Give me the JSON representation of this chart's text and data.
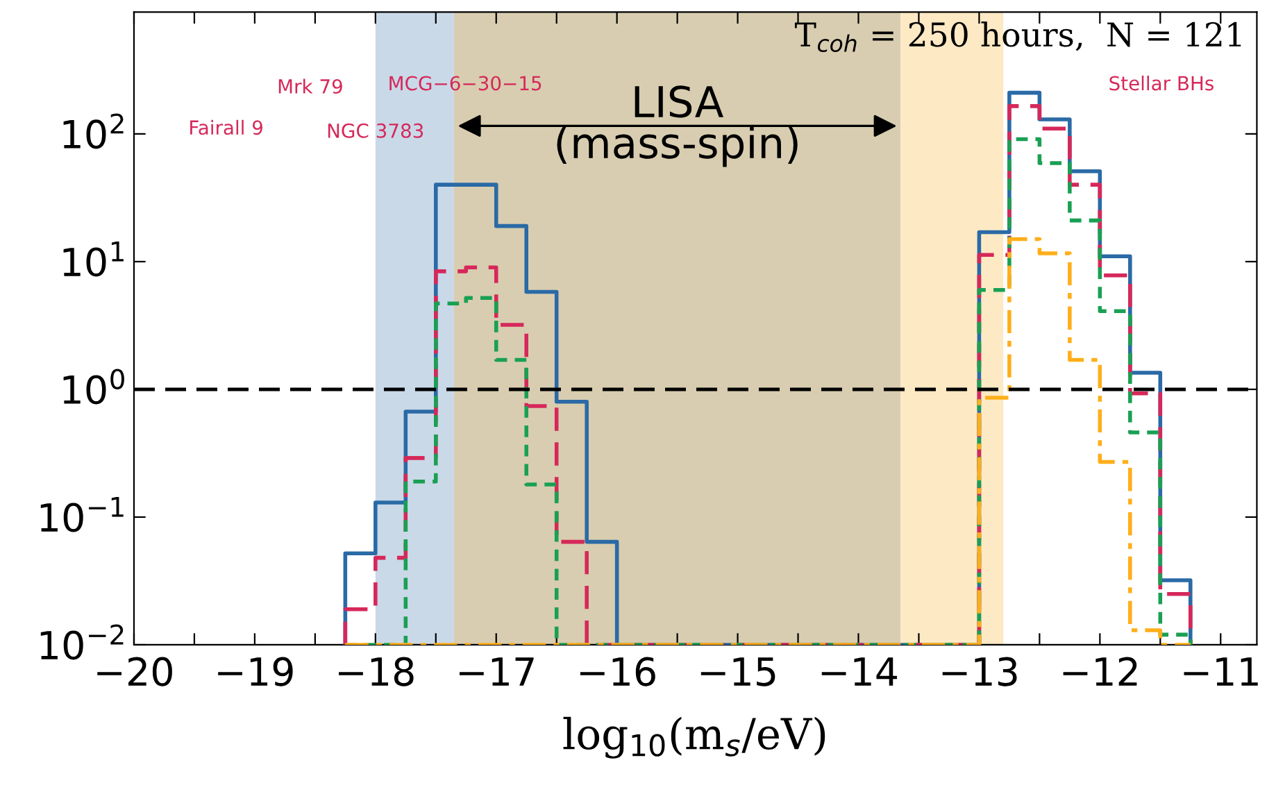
{
  "chart_data": {
    "type": "histogram",
    "xlabel": "log$_{10}$(m$_{s}$/eV)",
    "bins": [
      -18.25,
      -18,
      -17.75,
      -17.5,
      -17.25,
      -17,
      -16.75,
      -16.5,
      -16.25,
      -16,
      -15.75,
      -15.5,
      -15.25,
      -15,
      -14.75,
      -14.5,
      -14.25,
      -14,
      -13.75,
      -13.5,
      -13.25,
      -13,
      -12.75,
      -12.5,
      -12.25,
      -12,
      -11.75,
      -11.5,
      -11.25
    ],
    "series": [
      {
        "color": "#2a6aa6",
        "line_style": "solid",
        "values": [
          0.052,
          0.13,
          0.67,
          40,
          40,
          19,
          5.8,
          0.8,
          0.064,
          null,
          null,
          null,
          null,
          null,
          null,
          null,
          null,
          null,
          null,
          null,
          null,
          17,
          210,
          130,
          51,
          11,
          1.35,
          0.032
        ]
      },
      {
        "color": "#d6285a",
        "line_style": "dashed",
        "values": [
          0.019,
          0.048,
          0.29,
          8.4,
          9,
          3.2,
          0.74,
          0.064,
          null,
          null,
          null,
          null,
          null,
          null,
          null,
          null,
          null,
          null,
          null,
          null,
          null,
          11.3,
          165,
          110,
          40,
          7.8,
          0.93,
          0.025
        ]
      },
      {
        "color": "#1aa053",
        "line_style": "dotted",
        "values": [
          null,
          null,
          0.19,
          4.7,
          5.2,
          1.7,
          0.18,
          null,
          null,
          null,
          null,
          null,
          null,
          null,
          null,
          null,
          null,
          null,
          null,
          null,
          null,
          6,
          91,
          59,
          21,
          4.1,
          0.46,
          0.012
        ]
      },
      {
        "color": "#ffae1a",
        "line_style": "dashdot",
        "values": [
          null,
          null,
          null,
          null,
          null,
          null,
          null,
          null,
          null,
          null,
          null,
          null,
          null,
          null,
          null,
          null,
          null,
          null,
          null,
          null,
          null,
          0.86,
          15,
          11.6,
          1.7,
          0.27,
          0.013,
          null
        ]
      }
    ],
    "log": "y",
    "xlim": [
      -20,
      -10.7
    ],
    "ylim": [
      0.01,
      900
    ],
    "xticks": [
      {
        "value": -20,
        "label": "−20"
      },
      {
        "value": -19.5,
        "label": null
      },
      {
        "value": -19,
        "label": "−19"
      },
      {
        "value": -18.5,
        "label": null
      },
      {
        "value": -18,
        "label": "−18"
      },
      {
        "value": -17.5,
        "label": null
      },
      {
        "value": -17,
        "label": "−17"
      },
      {
        "value": -16.5,
        "label": null
      },
      {
        "value": -16,
        "label": "−16"
      },
      {
        "value": -15.5,
        "label": null
      },
      {
        "value": -15,
        "label": "−15"
      },
      {
        "value": -14.5,
        "label": null
      },
      {
        "value": -14,
        "label": "−14"
      },
      {
        "value": -13.5,
        "label": null
      },
      {
        "value": -13,
        "label": "−13"
      },
      {
        "value": -12.5,
        "label": null
      },
      {
        "value": -12,
        "label": "−12"
      },
      {
        "value": -11.5,
        "label": null
      },
      {
        "value": -11,
        "label": "−11"
      }
    ],
    "yticks": [
      {
        "value": 0.01,
        "label": "10$^{−2}$"
      },
      {
        "value": 0.1,
        "label": "10$^{−1}$"
      },
      {
        "value": 1,
        "label": "10$^{0}$"
      },
      {
        "value": 10,
        "label": "10$^{1}$"
      },
      {
        "value": 100,
        "label": "10$^{2}$"
      }
    ],
    "ref_lines": [
      {
        "axis": "y",
        "value": 1,
        "color": "#000000",
        "line_style": "dashed"
      }
    ],
    "bands": [
      {
        "axis": "x",
        "from": -18,
        "to": -17.35,
        "color": "#c9d9e8"
      },
      {
        "axis": "x",
        "from": -17.35,
        "to": -13.65,
        "color": "#d8cdb0",
        "label": "LISA\n(mass-spin)"
      },
      {
        "axis": "x",
        "from": -13.65,
        "to": -12.8,
        "color": "#fde9c4"
      }
    ],
    "annotations": [
      "T$_{coh}$ = 250 hours,  N = 121",
      "Fairall 9",
      "Mrk 79",
      "MCG−6−30−15",
      "NGC 3783",
      "Stellar BHs"
    ],
    "grid": false,
    "legend": false
  }
}
